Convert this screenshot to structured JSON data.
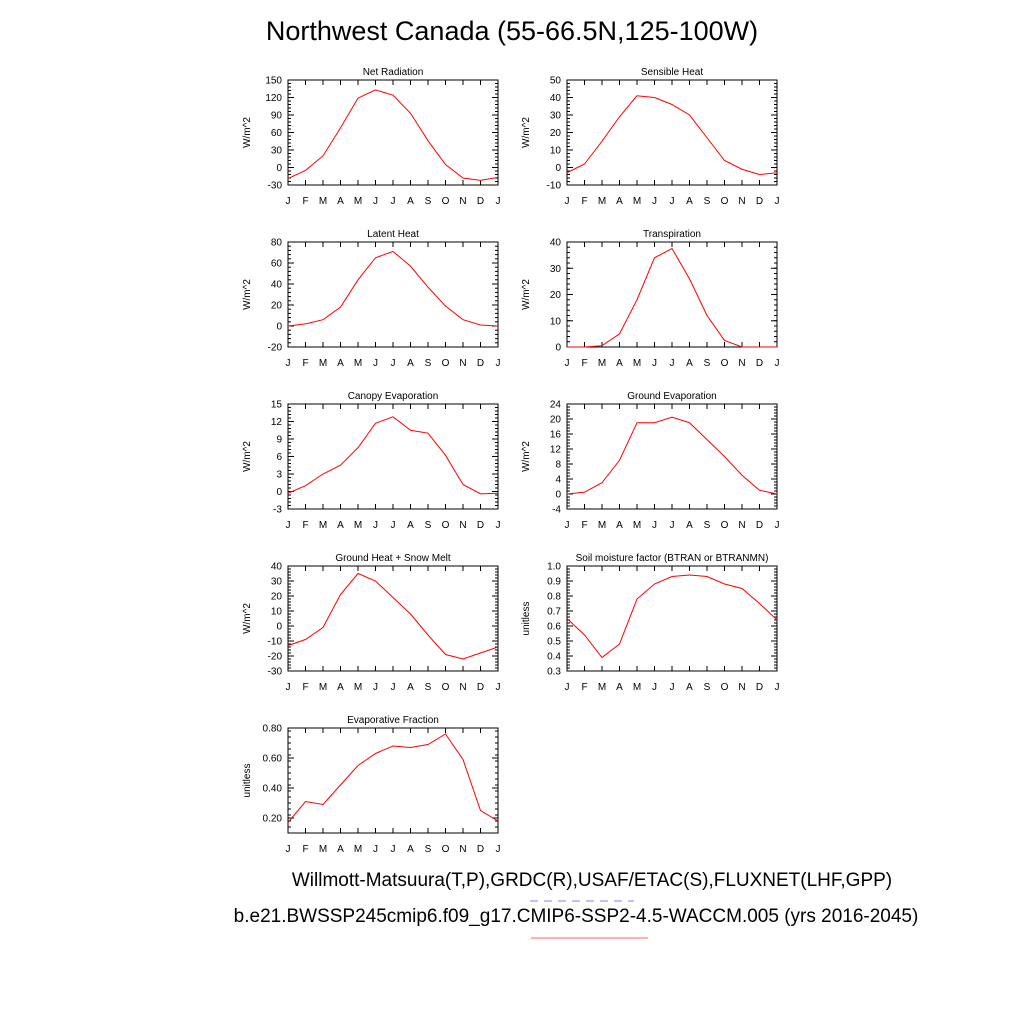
{
  "title": "Northwest Canada (55-66.5N,125-100W)",
  "footer": {
    "obs_line": "Willmott-Matsuura(T,P),GRDC(R),USAF/ETAC(S),FLUXNET(LHF,GPP)",
    "model_line": "b.e21.BWSSP245cmip6.f09_g17.CMIP6-SSP2-4.5-WACCM.005 (yrs 2016-2045)"
  },
  "colors": {
    "series": "#ff0000",
    "obs_dash": "#8080ff",
    "model_underline": "#ff8080",
    "axis": "#000000"
  },
  "chart_data": [
    {
      "type": "line",
      "title": "Net Radiation",
      "ylabel": "W/m^2",
      "categories": [
        "J",
        "F",
        "M",
        "A",
        "M",
        "J",
        "J",
        "A",
        "S",
        "O",
        "N",
        "D",
        "J"
      ],
      "ylim": [
        -30,
        150
      ],
      "yticks": [
        -30,
        0,
        30,
        60,
        90,
        120,
        150
      ],
      "ytick_labels": [
        "-30",
        "0",
        "30",
        "60",
        "90",
        "120",
        "150"
      ],
      "values": [
        -19,
        -5,
        20,
        68,
        119,
        133,
        124,
        93,
        46,
        5,
        -18,
        -22,
        -17
      ]
    },
    {
      "type": "line",
      "title": "Sensible Heat",
      "ylabel": "W/m^2",
      "categories": [
        "J",
        "F",
        "M",
        "A",
        "M",
        "J",
        "J",
        "A",
        "S",
        "O",
        "N",
        "D",
        "J"
      ],
      "ylim": [
        -10,
        50
      ],
      "yticks": [
        -10,
        0,
        10,
        20,
        30,
        40,
        50
      ],
      "ytick_labels": [
        "-10",
        "0",
        "10",
        "20",
        "30",
        "40",
        "50"
      ],
      "values": [
        -3,
        2,
        15,
        29,
        41,
        40,
        36,
        30,
        17,
        4,
        -1,
        -4,
        -3
      ]
    },
    {
      "type": "line",
      "title": "Latent Heat",
      "ylabel": "W/m^2",
      "categories": [
        "J",
        "F",
        "M",
        "A",
        "M",
        "J",
        "J",
        "A",
        "S",
        "O",
        "N",
        "D",
        "J"
      ],
      "ylim": [
        -20,
        80
      ],
      "yticks": [
        -20,
        0,
        20,
        40,
        60,
        80
      ],
      "ytick_labels": [
        "-20",
        "0",
        "20",
        "40",
        "60",
        "80"
      ],
      "values": [
        0,
        2,
        6,
        18,
        44,
        65,
        71,
        57,
        37,
        19,
        6,
        1,
        0
      ]
    },
    {
      "type": "line",
      "title": "Transpiration",
      "ylabel": "W/m^2",
      "categories": [
        "J",
        "F",
        "M",
        "A",
        "M",
        "J",
        "J",
        "A",
        "S",
        "O",
        "N",
        "D",
        "J"
      ],
      "ylim": [
        0,
        40
      ],
      "yticks": [
        0,
        10,
        20,
        30,
        40
      ],
      "ytick_labels": [
        "0",
        "10",
        "20",
        "30",
        "40"
      ],
      "values": [
        0,
        0,
        0.5,
        5,
        18,
        34,
        37.5,
        26,
        12,
        2.5,
        0,
        0,
        0
      ]
    },
    {
      "type": "line",
      "title": "Canopy Evaporation",
      "ylabel": "W/m^2",
      "categories": [
        "J",
        "F",
        "M",
        "A",
        "M",
        "J",
        "J",
        "A",
        "S",
        "O",
        "N",
        "D",
        "J"
      ],
      "ylim": [
        -3,
        15
      ],
      "yticks": [
        -3,
        0,
        3,
        6,
        9,
        12,
        15
      ],
      "ytick_labels": [
        "-3",
        "0",
        "3",
        "6",
        "9",
        "12",
        "15"
      ],
      "values": [
        -0.3,
        1,
        3,
        4.5,
        7.5,
        11.7,
        12.8,
        10.5,
        10,
        6.2,
        1.2,
        -0.4,
        -0.3
      ]
    },
    {
      "type": "line",
      "title": "Ground Evaporation",
      "ylabel": "W/m^2",
      "categories": [
        "J",
        "F",
        "M",
        "A",
        "M",
        "J",
        "J",
        "A",
        "S",
        "O",
        "N",
        "D",
        "J"
      ],
      "ylim": [
        -4,
        24
      ],
      "yticks": [
        -4,
        0,
        4,
        8,
        12,
        16,
        20,
        24
      ],
      "ytick_labels": [
        "-4",
        "0",
        "4",
        "8",
        "12",
        "16",
        "20",
        "24"
      ],
      "values": [
        0,
        0.5,
        3,
        9,
        19,
        19,
        20.5,
        19,
        14.5,
        10,
        5,
        1,
        0
      ]
    },
    {
      "type": "line",
      "title": "Ground Heat + Snow Melt",
      "ylabel": "W/m^2",
      "categories": [
        "J",
        "F",
        "M",
        "A",
        "M",
        "J",
        "J",
        "A",
        "S",
        "O",
        "N",
        "D",
        "J"
      ],
      "ylim": [
        -30,
        40
      ],
      "yticks": [
        -30,
        -20,
        -10,
        0,
        10,
        20,
        30,
        40
      ],
      "ytick_labels": [
        "-30",
        "-20",
        "-10",
        "0",
        "10",
        "20",
        "30",
        "40"
      ],
      "values": [
        -13,
        -9,
        -1,
        21,
        35,
        30,
        19,
        8,
        -6,
        -19,
        -22,
        -18,
        -14
      ]
    },
    {
      "type": "line",
      "title": "Soil moisture factor (BTRAN or BTRANMN)",
      "ylabel": "unitless",
      "categories": [
        "J",
        "F",
        "M",
        "A",
        "M",
        "J",
        "J",
        "A",
        "S",
        "O",
        "N",
        "D",
        "J"
      ],
      "ylim": [
        0.3,
        1.0
      ],
      "yticks": [
        0.3,
        0.4,
        0.5,
        0.6,
        0.7,
        0.8,
        0.9,
        1.0
      ],
      "ytick_labels": [
        "0.3",
        "0.4",
        "0.5",
        "0.6",
        "0.7",
        "0.8",
        "0.9",
        "1.0"
      ],
      "values": [
        0.65,
        0.54,
        0.39,
        0.48,
        0.78,
        0.88,
        0.93,
        0.94,
        0.93,
        0.88,
        0.85,
        0.75,
        0.64
      ]
    },
    {
      "type": "line",
      "title": "Evaporative Fraction",
      "ylabel": "unitless",
      "categories": [
        "J",
        "F",
        "M",
        "A",
        "M",
        "J",
        "J",
        "A",
        "S",
        "O",
        "N",
        "D",
        "J"
      ],
      "ylim": [
        0.1,
        0.8
      ],
      "yticks": [
        0.2,
        0.4,
        0.6,
        0.8
      ],
      "ytick_labels": [
        "0.20",
        "0.40",
        "0.60",
        "0.80"
      ],
      "values": [
        0.17,
        0.31,
        0.29,
        0.42,
        0.55,
        0.63,
        0.68,
        0.67,
        0.69,
        0.76,
        0.59,
        0.25,
        0.18
      ]
    }
  ]
}
